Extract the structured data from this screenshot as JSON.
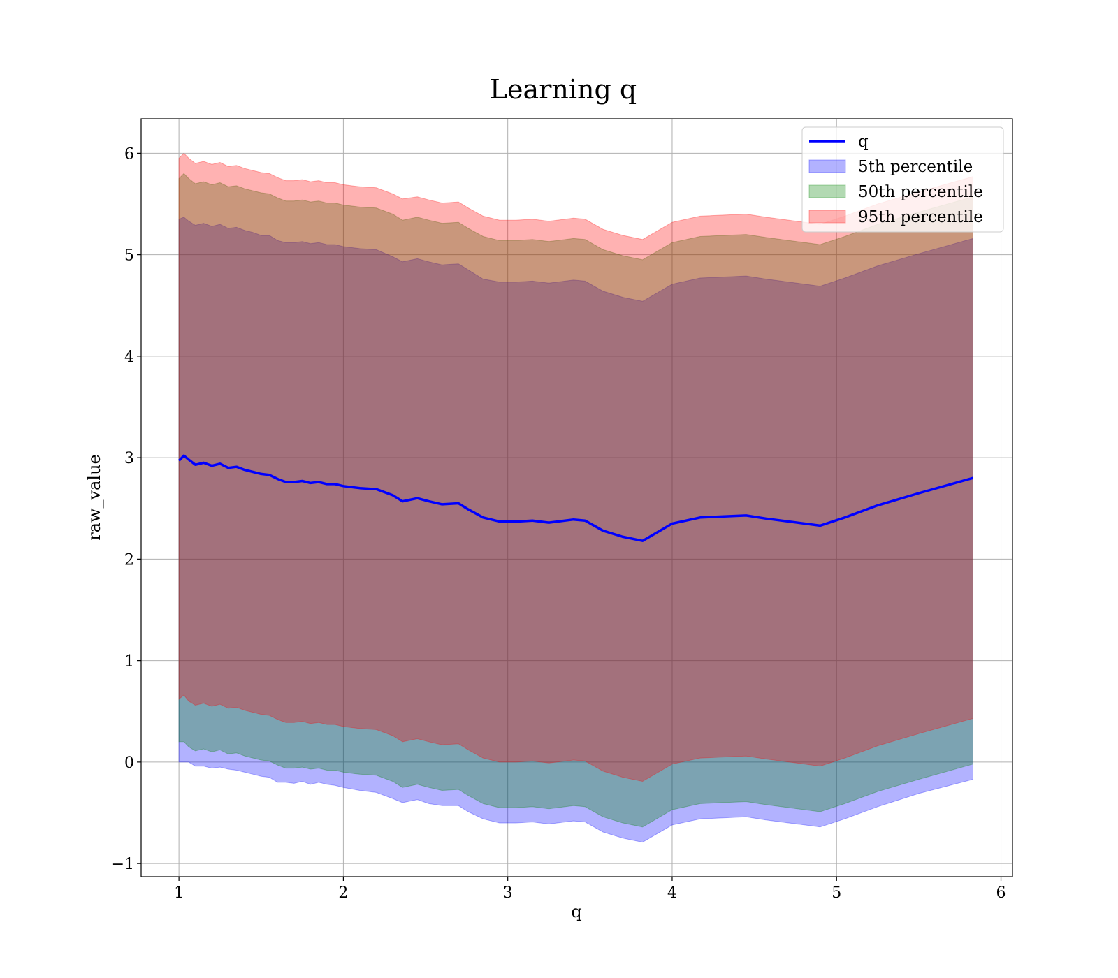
{
  "chart_data": {
    "type": "area",
    "title": "Learning q",
    "xlabel": "q",
    "ylabel": "raw_value",
    "xlim": [
      0.77,
      6.07
    ],
    "ylim": [
      -1.13,
      6.34
    ],
    "xticks": [
      1,
      2,
      3,
      4,
      5,
      6
    ],
    "yticks": [
      -1,
      0,
      1,
      2,
      3,
      4,
      5,
      6
    ],
    "xtick_labels": [
      "1",
      "2",
      "3",
      "4",
      "5",
      "6"
    ],
    "ytick_labels": [
      "−1",
      "0",
      "1",
      "2",
      "3",
      "4",
      "5",
      "6"
    ],
    "grid": true,
    "legend_position": "top-right",
    "colors": {
      "line": "#0000ff",
      "p5": "#0000ff",
      "p50": "#008000",
      "p95": "#ff0000"
    },
    "x": [
      1.0,
      1.03,
      1.06,
      1.1,
      1.15,
      1.2,
      1.25,
      1.3,
      1.35,
      1.4,
      1.45,
      1.5,
      1.55,
      1.6,
      1.65,
      1.7,
      1.75,
      1.8,
      1.85,
      1.9,
      1.95,
      2.0,
      2.1,
      2.2,
      2.3,
      2.36,
      2.45,
      2.52,
      2.6,
      2.7,
      2.76,
      2.85,
      2.95,
      3.05,
      3.15,
      3.25,
      3.4,
      3.47,
      3.58,
      3.7,
      3.82,
      4.0,
      4.17,
      4.45,
      4.57,
      4.9,
      5.05,
      5.25,
      5.5,
      5.83
    ],
    "series": [
      {
        "name": "q",
        "kind": "line",
        "values": [
          2.97,
          3.02,
          2.98,
          2.93,
          2.95,
          2.92,
          2.94,
          2.9,
          2.91,
          2.88,
          2.86,
          2.84,
          2.83,
          2.79,
          2.76,
          2.76,
          2.77,
          2.75,
          2.76,
          2.74,
          2.74,
          2.72,
          2.7,
          2.69,
          2.63,
          2.57,
          2.6,
          2.57,
          2.54,
          2.55,
          2.49,
          2.41,
          2.37,
          2.37,
          2.38,
          2.36,
          2.39,
          2.38,
          2.28,
          2.22,
          2.18,
          2.35,
          2.41,
          2.43,
          2.4,
          2.33,
          2.41,
          2.53,
          2.65,
          2.8
        ]
      },
      {
        "name": "5th percentile",
        "kind": "band",
        "lower": [
          0.0,
          0.0,
          0.0,
          -0.04,
          -0.04,
          -0.06,
          -0.05,
          -0.07,
          -0.08,
          -0.1,
          -0.12,
          -0.14,
          -0.15,
          -0.2,
          -0.2,
          -0.21,
          -0.19,
          -0.22,
          -0.2,
          -0.22,
          -0.23,
          -0.25,
          -0.28,
          -0.3,
          -0.36,
          -0.4,
          -0.37,
          -0.41,
          -0.43,
          -0.43,
          -0.49,
          -0.56,
          -0.6,
          -0.6,
          -0.59,
          -0.61,
          -0.58,
          -0.59,
          -0.69,
          -0.75,
          -0.79,
          -0.62,
          -0.56,
          -0.54,
          -0.57,
          -0.64,
          -0.56,
          -0.44,
          -0.31,
          -0.17
        ],
        "upper": [
          5.35,
          5.37,
          5.33,
          5.29,
          5.31,
          5.28,
          5.3,
          5.26,
          5.27,
          5.24,
          5.22,
          5.19,
          5.19,
          5.14,
          5.12,
          5.12,
          5.13,
          5.11,
          5.12,
          5.1,
          5.1,
          5.08,
          5.06,
          5.05,
          4.98,
          4.93,
          4.96,
          4.93,
          4.9,
          4.91,
          4.85,
          4.76,
          4.73,
          4.73,
          4.74,
          4.72,
          4.75,
          4.74,
          4.64,
          4.58,
          4.54,
          4.71,
          4.77,
          4.79,
          4.76,
          4.69,
          4.77,
          4.89,
          5.01,
          5.16
        ]
      },
      {
        "name": "50th percentile",
        "kind": "band",
        "lower": [
          0.2,
          0.2,
          0.15,
          0.11,
          0.13,
          0.1,
          0.12,
          0.08,
          0.09,
          0.06,
          0.04,
          0.02,
          0.01,
          -0.03,
          -0.06,
          -0.06,
          -0.05,
          -0.07,
          -0.06,
          -0.08,
          -0.08,
          -0.1,
          -0.12,
          -0.13,
          -0.19,
          -0.25,
          -0.22,
          -0.25,
          -0.28,
          -0.27,
          -0.33,
          -0.41,
          -0.45,
          -0.45,
          -0.44,
          -0.46,
          -0.43,
          -0.44,
          -0.54,
          -0.6,
          -0.64,
          -0.47,
          -0.41,
          -0.39,
          -0.42,
          -0.49,
          -0.41,
          -0.29,
          -0.17,
          -0.02
        ],
        "upper": [
          5.75,
          5.8,
          5.75,
          5.7,
          5.72,
          5.69,
          5.71,
          5.67,
          5.68,
          5.65,
          5.63,
          5.61,
          5.6,
          5.56,
          5.53,
          5.53,
          5.54,
          5.52,
          5.53,
          5.51,
          5.51,
          5.49,
          5.47,
          5.46,
          5.4,
          5.34,
          5.37,
          5.34,
          5.31,
          5.32,
          5.26,
          5.18,
          5.14,
          5.14,
          5.15,
          5.13,
          5.16,
          5.15,
          5.05,
          4.99,
          4.95,
          5.12,
          5.18,
          5.2,
          5.17,
          5.1,
          5.18,
          5.3,
          5.42,
          5.57
        ]
      },
      {
        "name": "95th percentile",
        "kind": "band",
        "lower": [
          0.62,
          0.66,
          0.6,
          0.56,
          0.58,
          0.55,
          0.57,
          0.53,
          0.54,
          0.51,
          0.49,
          0.47,
          0.46,
          0.42,
          0.39,
          0.39,
          0.4,
          0.38,
          0.39,
          0.37,
          0.37,
          0.35,
          0.33,
          0.32,
          0.26,
          0.2,
          0.23,
          0.2,
          0.17,
          0.18,
          0.12,
          0.04,
          0.0,
          0.0,
          0.01,
          -0.01,
          0.02,
          0.01,
          -0.09,
          -0.15,
          -0.19,
          -0.02,
          0.04,
          0.06,
          0.03,
          -0.04,
          0.04,
          0.16,
          0.28,
          0.43
        ],
        "upper": [
          5.95,
          6.0,
          5.95,
          5.9,
          5.92,
          5.89,
          5.91,
          5.87,
          5.88,
          5.85,
          5.83,
          5.81,
          5.8,
          5.76,
          5.73,
          5.73,
          5.74,
          5.72,
          5.73,
          5.71,
          5.71,
          5.69,
          5.67,
          5.66,
          5.6,
          5.55,
          5.57,
          5.54,
          5.51,
          5.52,
          5.46,
          5.38,
          5.34,
          5.34,
          5.35,
          5.33,
          5.36,
          5.35,
          5.25,
          5.19,
          5.15,
          5.32,
          5.38,
          5.4,
          5.37,
          5.3,
          5.38,
          5.5,
          5.62,
          5.77
        ]
      }
    ]
  }
}
